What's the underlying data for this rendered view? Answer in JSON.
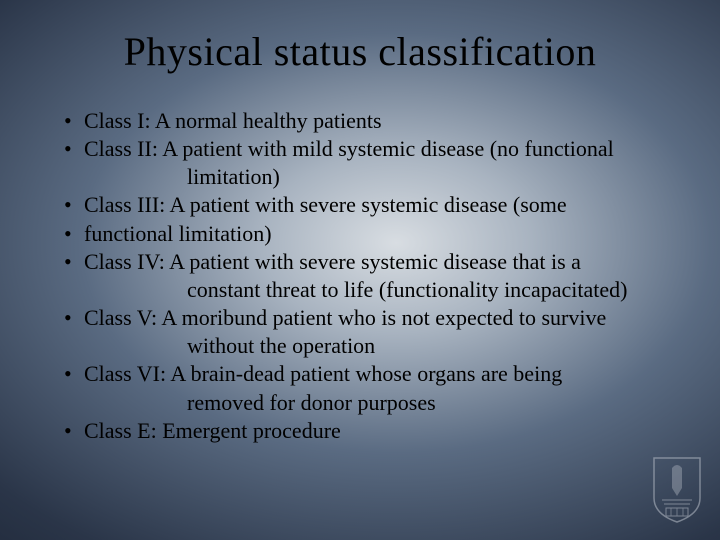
{
  "slide": {
    "title": "Physical status classification",
    "bullets": [
      {
        "text": "Class I:  A normal healthy patients"
      },
      {
        "text": "Class II: A patient with mild systemic disease (no functional",
        "cont": "limitation)"
      },
      {
        "text": "Class III: A patient with severe systemic disease (some"
      },
      {
        "text": "                functional limitation)"
      },
      {
        "text": "Class IV: A patient with severe systemic disease that is a",
        "cont": "constant threat to life (functionality incapacitated)"
      },
      {
        "text": "Class V:  A moribund patient who is not expected to survive",
        "cont": "without the operation"
      },
      {
        "text": "Class VI: A brain-dead patient whose organs are being",
        "cont": "removed for donor purposes"
      },
      {
        "text": "Class E:  Emergent procedure"
      }
    ],
    "title_fontsize": 40,
    "body_fontsize": 22,
    "text_color": "#000000",
    "background_gradient": [
      "#d8dde2",
      "#a8b3c0",
      "#5a6b82",
      "#2a3548",
      "#141b2a",
      "#0a0f1a"
    ]
  }
}
